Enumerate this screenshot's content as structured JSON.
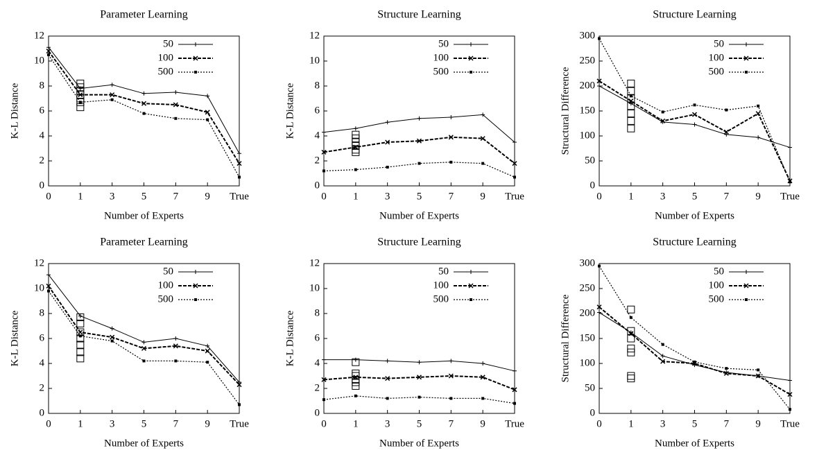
{
  "chart_data": [
    {
      "type": "line",
      "title": "Parameter Learning",
      "x_label": "Number of Experts",
      "y_label": "K-L Distance",
      "categories": [
        "0",
        "1",
        "3",
        "5",
        "7",
        "9",
        "True"
      ],
      "ylim": [
        0,
        12
      ],
      "yticks": [
        0,
        2,
        4,
        6,
        8,
        10,
        12
      ],
      "legend": "upper right",
      "series": [
        {
          "name": "50",
          "color": "#000000",
          "dash": "solid",
          "values": [
            11.1,
            7.8,
            8.1,
            7.4,
            7.5,
            7.2,
            2.6
          ]
        },
        {
          "name": "100",
          "color": "#000000",
          "dash": "dashed",
          "values": [
            10.8,
            7.3,
            7.3,
            6.6,
            6.5,
            5.9,
            1.8
          ]
        },
        {
          "name": "500",
          "color": "#000000",
          "dash": "dotted",
          "values": [
            10.5,
            6.7,
            6.9,
            5.8,
            5.4,
            5.3,
            0.7
          ]
        }
      ],
      "expert_values": [
        8.2,
        7.9,
        7.6,
        7.3,
        7.0,
        6.7,
        6.3
      ]
    },
    {
      "type": "line",
      "title": "Structure Learning",
      "x_label": "Number of Experts",
      "y_label": "K-L Distance",
      "categories": [
        "0",
        "1",
        "3",
        "5",
        "7",
        "9",
        "True"
      ],
      "ylim": [
        0,
        12
      ],
      "yticks": [
        0,
        2,
        4,
        6,
        8,
        10,
        12
      ],
      "legend": "upper right",
      "series": [
        {
          "name": "50",
          "color": "#000000",
          "dash": "solid",
          "values": [
            4.3,
            4.6,
            5.1,
            5.4,
            5.5,
            5.7,
            3.5
          ]
        },
        {
          "name": "100",
          "color": "#000000",
          "dash": "dashed",
          "values": [
            2.7,
            3.1,
            3.5,
            3.6,
            3.9,
            3.8,
            1.8
          ]
        },
        {
          "name": "500",
          "color": "#000000",
          "dash": "dotted",
          "values": [
            1.2,
            1.3,
            1.5,
            1.8,
            1.9,
            1.8,
            0.7
          ]
        }
      ],
      "expert_values": [
        4.1,
        3.8,
        3.5,
        3.2,
        2.9,
        2.7
      ]
    },
    {
      "type": "line",
      "title": "Structure Learning",
      "x_label": "Number of Experts",
      "y_label": "Structural Difference",
      "categories": [
        "0",
        "1",
        "3",
        "5",
        "7",
        "9",
        "True"
      ],
      "ylim": [
        0,
        300
      ],
      "yticks": [
        0,
        50,
        100,
        150,
        200,
        250,
        300
      ],
      "legend": "upper right",
      "series": [
        {
          "name": "50",
          "color": "#000000",
          "dash": "solid",
          "values": [
            200,
            165,
            128,
            123,
            103,
            97,
            77
          ]
        },
        {
          "name": "100",
          "color": "#000000",
          "dash": "dashed",
          "values": [
            210,
            170,
            130,
            143,
            108,
            145,
            10
          ]
        },
        {
          "name": "500",
          "color": "#000000",
          "dash": "dotted",
          "values": [
            295,
            180,
            148,
            162,
            152,
            160,
            8
          ]
        }
      ],
      "expert_values": [
        205,
        190,
        175,
        160,
        145,
        130,
        115
      ]
    },
    {
      "type": "line",
      "title": "Parameter Learning",
      "x_label": "Number of Experts",
      "y_label": "K-L Distance",
      "categories": [
        "0",
        "1",
        "3",
        "5",
        "7",
        "9",
        "True"
      ],
      "ylim": [
        0,
        12
      ],
      "yticks": [
        0,
        2,
        4,
        6,
        8,
        10,
        12
      ],
      "legend": "upper right",
      "series": [
        {
          "name": "50",
          "color": "#000000",
          "dash": "solid",
          "values": [
            11.1,
            7.8,
            6.8,
            5.7,
            6.0,
            5.4,
            2.5
          ]
        },
        {
          "name": "100",
          "color": "#000000",
          "dash": "dashed",
          "values": [
            10.2,
            6.5,
            6.1,
            5.2,
            5.4,
            5.0,
            2.3
          ]
        },
        {
          "name": "500",
          "color": "#000000",
          "dash": "dotted",
          "values": [
            9.8,
            6.2,
            5.8,
            4.2,
            4.2,
            4.1,
            0.7
          ]
        }
      ],
      "expert_values": [
        7.7,
        7.2,
        6.5,
        6.0,
        5.5,
        4.9,
        4.4
      ]
    },
    {
      "type": "line",
      "title": "Structure Learning",
      "x_label": "Number of Experts",
      "y_label": "K-L Distance",
      "categories": [
        "0",
        "1",
        "3",
        "5",
        "7",
        "9",
        "True"
      ],
      "ylim": [
        0,
        12
      ],
      "yticks": [
        0,
        2,
        4,
        6,
        8,
        10,
        12
      ],
      "legend": "upper right",
      "series": [
        {
          "name": "50",
          "color": "#000000",
          "dash": "solid",
          "values": [
            4.3,
            4.3,
            4.2,
            4.1,
            4.2,
            4.0,
            3.4
          ]
        },
        {
          "name": "100",
          "color": "#000000",
          "dash": "dashed",
          "values": [
            2.7,
            2.9,
            2.8,
            2.9,
            3.0,
            2.9,
            1.9
          ]
        },
        {
          "name": "500",
          "color": "#000000",
          "dash": "dotted",
          "values": [
            1.1,
            1.4,
            1.2,
            1.3,
            1.2,
            1.2,
            0.8
          ]
        }
      ],
      "expert_values": [
        4.1,
        3.2,
        3.0,
        2.7,
        2.5,
        2.2
      ]
    },
    {
      "type": "line",
      "title": "Structure Learning",
      "x_label": "Number of Experts",
      "y_label": "Structural Difference",
      "categories": [
        "0",
        "1",
        "3",
        "5",
        "7",
        "9",
        "True"
      ],
      "ylim": [
        0,
        300
      ],
      "yticks": [
        0,
        50,
        100,
        150,
        200,
        250,
        300
      ],
      "legend": "upper right",
      "series": [
        {
          "name": "50",
          "color": "#000000",
          "dash": "solid",
          "values": [
            202,
            162,
            115,
            97,
            82,
            75,
            66
          ]
        },
        {
          "name": "100",
          "color": "#000000",
          "dash": "dashed",
          "values": [
            213,
            160,
            104,
            100,
            80,
            75,
            38
          ]
        },
        {
          "name": "500",
          "color": "#000000",
          "dash": "dotted",
          "values": [
            295,
            192,
            138,
            103,
            90,
            87,
            8
          ]
        }
      ],
      "expert_values": [
        208,
        165,
        150,
        130,
        122,
        75,
        70
      ]
    }
  ]
}
